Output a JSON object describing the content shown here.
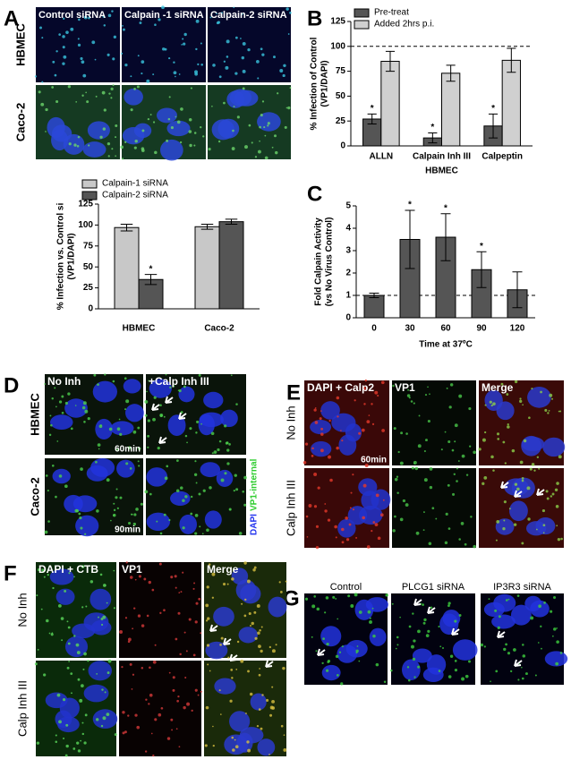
{
  "panel_labels": [
    "A",
    "B",
    "C",
    "D",
    "E",
    "F",
    "G"
  ],
  "chart_data": [
    {
      "type": "bar",
      "ylabel": [
        "% Infection vs. Control si",
        "(VP1/DAPI)"
      ],
      "categories": [
        "HBMEC",
        "Caco-2"
      ],
      "series": [
        {
          "name": "Calpain-1 siRNA",
          "color": "#c8c8c8",
          "values": [
            97,
            98
          ],
          "errors": [
            4,
            3
          ],
          "significant": [
            false,
            false
          ]
        },
        {
          "name": "Calpain-2 siRNA",
          "color": "#555555",
          "values": [
            35,
            104
          ],
          "errors": [
            6,
            3
          ],
          "significant": [
            true,
            false
          ]
        }
      ],
      "significance_marker": "*",
      "ylim": [
        0,
        125
      ],
      "yticks": [
        0,
        25,
        50,
        75,
        100,
        125
      ]
    },
    {
      "type": "bar",
      "ylabel": [
        "% Infection of Control",
        "(VP1/DAPI)"
      ],
      "xlabel": "HBMEC",
      "categories": [
        "ALLN",
        "Calpain Inh III",
        "Calpeptin"
      ],
      "series": [
        {
          "name": "Pre-treat",
          "color": "#555555",
          "values": [
            27,
            8,
            20
          ],
          "errors": [
            5,
            5,
            12
          ],
          "significant": [
            true,
            true,
            true
          ]
        },
        {
          "name": "Added 2hrs p.i.",
          "color": "#d0d0d0",
          "values": [
            85,
            73,
            86
          ],
          "errors": [
            10,
            8,
            12
          ],
          "significant": [
            false,
            false,
            false
          ]
        }
      ],
      "significance_marker": "*",
      "reference_line": 100,
      "ylim": [
        0,
        125
      ],
      "yticks": [
        0,
        25,
        50,
        75,
        100,
        125
      ]
    },
    {
      "type": "bar",
      "ylabel": [
        "Fold Calpain Activity",
        "(vs No Virus Control)"
      ],
      "xlabel": "Time at 37ºC",
      "categories": [
        "0",
        "30",
        "60",
        "90",
        "120"
      ],
      "series": [
        {
          "color": "#555555",
          "values": [
            1.0,
            3.5,
            3.6,
            2.15,
            1.25
          ],
          "errors": [
            0.1,
            1.3,
            1.05,
            0.8,
            0.8
          ],
          "significant": [
            false,
            true,
            true,
            true,
            false
          ]
        }
      ],
      "significance_marker": "*",
      "reference_line": 1,
      "ylim": [
        0,
        5
      ],
      "yticks": [
        0,
        1,
        2,
        3,
        4,
        5
      ]
    }
  ],
  "images": {
    "A": {
      "columns": [
        "Control siRNA",
        "Calpain -1 siRNA",
        "Calpain-2 siRNA"
      ],
      "rows": [
        "HBMEC",
        "Caco-2"
      ]
    },
    "D": {
      "columns": [
        "No Inh",
        "+Calp Inh III"
      ],
      "rows": [
        "HBMEC",
        "Caco-2"
      ],
      "times": [
        "60min",
        "90min"
      ],
      "stain_legend": [
        "DAPI",
        "VP1-internal"
      ]
    },
    "E": {
      "columns": [
        "DAPI + Calp2",
        "VP1",
        "Merge"
      ],
      "rows": [
        "No Inh",
        "Calp Inh III"
      ],
      "times": [
        "60min"
      ]
    },
    "F": {
      "columns": [
        "DAPI + CTB",
        "VP1",
        "Merge"
      ],
      "rows": [
        "No Inh",
        "Calp Inh III"
      ]
    },
    "G": {
      "columns": [
        "Control",
        "PLCG1 siRNA",
        "IP3R3 siRNA"
      ]
    }
  }
}
